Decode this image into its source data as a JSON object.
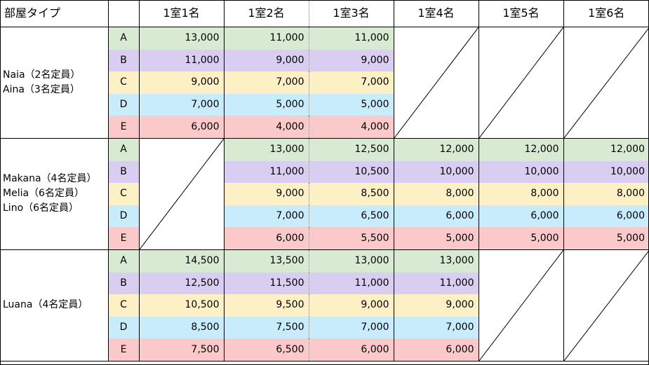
{
  "header": {
    "type_label": "部屋タイプ",
    "rank_label": "",
    "cols": [
      "1室1名",
      "1室2名",
      "1室3名",
      "1室4名",
      "1室5名",
      "1室6名"
    ]
  },
  "groups": [
    {
      "names": [
        "Naia（2名定員）",
        "Aina（3名定員）"
      ],
      "rows": [
        {
          "rank": "A",
          "vals": [
            "13,000",
            "11,000",
            "11,000",
            null,
            null,
            null
          ]
        },
        {
          "rank": "B",
          "vals": [
            "11,000",
            "9,000",
            "9,000",
            null,
            null,
            null
          ]
        },
        {
          "rank": "C",
          "vals": [
            "9,000",
            "7,000",
            "7,000",
            null,
            null,
            null
          ]
        },
        {
          "rank": "D",
          "vals": [
            "7,000",
            "5,000",
            "5,000",
            null,
            null,
            null
          ]
        },
        {
          "rank": "E",
          "vals": [
            "6,000",
            "4,000",
            "4,000",
            null,
            null,
            null
          ]
        }
      ]
    },
    {
      "names": [
        "Makana（4名定員）",
        "Melia（6名定員）",
        "Lino（6名定員）"
      ],
      "rows": [
        {
          "rank": "A",
          "vals": [
            null,
            "13,000",
            "12,500",
            "12,000",
            "12,000",
            "12,000"
          ]
        },
        {
          "rank": "B",
          "vals": [
            null,
            "11,000",
            "10,500",
            "10,000",
            "10,000",
            "10,000"
          ]
        },
        {
          "rank": "C",
          "vals": [
            null,
            "9,000",
            "8,500",
            "8,000",
            "8,000",
            "8,000"
          ]
        },
        {
          "rank": "D",
          "vals": [
            null,
            "7,000",
            "6,500",
            "6,000",
            "6,000",
            "6,000"
          ]
        },
        {
          "rank": "E",
          "vals": [
            null,
            "6,000",
            "5,500",
            "5,000",
            "5,000",
            "5,000"
          ]
        }
      ]
    },
    {
      "names": [
        "Luana（4名定員）"
      ],
      "rows": [
        {
          "rank": "A",
          "vals": [
            "14,500",
            "13,500",
            "13,000",
            "13,000",
            null,
            null
          ]
        },
        {
          "rank": "B",
          "vals": [
            "12,500",
            "11,500",
            "11,000",
            "11,000",
            null,
            null
          ]
        },
        {
          "rank": "C",
          "vals": [
            "10,500",
            "9,500",
            "9,000",
            "9,000",
            null,
            null
          ]
        },
        {
          "rank": "D",
          "vals": [
            "8,500",
            "7,500",
            "7,000",
            "7,000",
            null,
            null
          ]
        },
        {
          "rank": "E",
          "vals": [
            "7,500",
            "6,500",
            "6,000",
            "6,000",
            null,
            null
          ]
        }
      ]
    }
  ],
  "colors": {
    "A": "#d9ead3",
    "B": "#d9cdf1",
    "C": "#fdf0c4",
    "D": "#c8ecfb",
    "E": "#fbc9c9"
  }
}
